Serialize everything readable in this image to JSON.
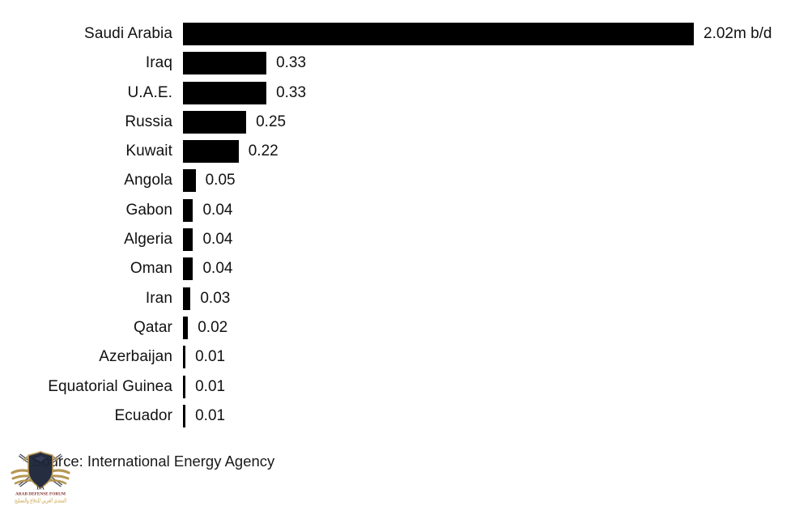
{
  "chart_data": {
    "type": "bar",
    "orientation": "horizontal",
    "categories": [
      "Saudi Arabia",
      "Iraq",
      "U.A.E.",
      "Russia",
      "Kuwait",
      "Angola",
      "Gabon",
      "Algeria",
      "Oman",
      "Iran",
      "Qatar",
      "Azerbaijan",
      "Equatorial Guinea",
      "Ecuador"
    ],
    "values": [
      2.02,
      0.33,
      0.33,
      0.25,
      0.22,
      0.05,
      0.04,
      0.04,
      0.04,
      0.03,
      0.02,
      0.01,
      0.01,
      0.01
    ],
    "value_labels": [
      "2.02m b/d",
      "0.33",
      "0.33",
      "0.25",
      "0.22",
      "0.05",
      "0.04",
      "0.04",
      "0.04",
      "0.03",
      "0.02",
      "0.01",
      "0.01",
      "0.01"
    ],
    "unit": "m b/d",
    "xlim": [
      0,
      2.02
    ],
    "bar_color": "#000000",
    "grid": "off",
    "legend": "none",
    "title": "",
    "xlabel": "",
    "ylabel": "",
    "source": "Source: International Energy Agency"
  },
  "watermark": {
    "monogram": "DA",
    "org_name": "ARAB DEFENSE FORUM",
    "org_name_arabic": "المنتدى العربي للدفاع والتسليح",
    "colors": {
      "shield_navy": "#1d2539",
      "gold": "#b3924f",
      "maroon": "#7b2a26",
      "arabic_gold": "#c59b3f",
      "blade_light": "#ececec"
    }
  }
}
